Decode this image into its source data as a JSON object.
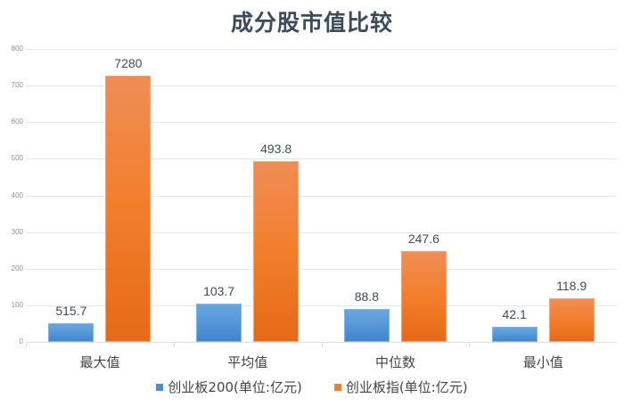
{
  "chart_data": {
    "type": "bar",
    "title": "成分股市值比较",
    "categories": [
      "最大值",
      "平均值",
      "中位数",
      "最小值"
    ],
    "series": [
      {
        "name": "创业板200(单位:亿元)",
        "color": "#4a8fd6",
        "values": [
          515.7,
          103.7,
          88.8,
          42.1
        ],
        "bar_heights_on_axis": [
          52,
          103.7,
          88.8,
          42.1
        ]
      },
      {
        "name": "创业板指(单位:亿元)",
        "color": "#f27e2b",
        "values": [
          7280,
          493.8,
          247.6,
          118.9
        ],
        "bar_heights_on_axis": [
          728,
          493.8,
          247.6,
          118.9
        ]
      }
    ],
    "data_labels": [
      [
        "515.7",
        "103.7",
        "88.8",
        "42.1"
      ],
      [
        "7280",
        "493.8",
        "247.6",
        "118.9"
      ]
    ],
    "xlabel": "",
    "ylabel": "",
    "ylim": [
      0,
      800
    ],
    "yticks": [
      "0",
      "100",
      "200",
      "300",
      "400",
      "500",
      "600",
      "700",
      "800"
    ],
    "grid": true,
    "legend_position": "bottom"
  }
}
